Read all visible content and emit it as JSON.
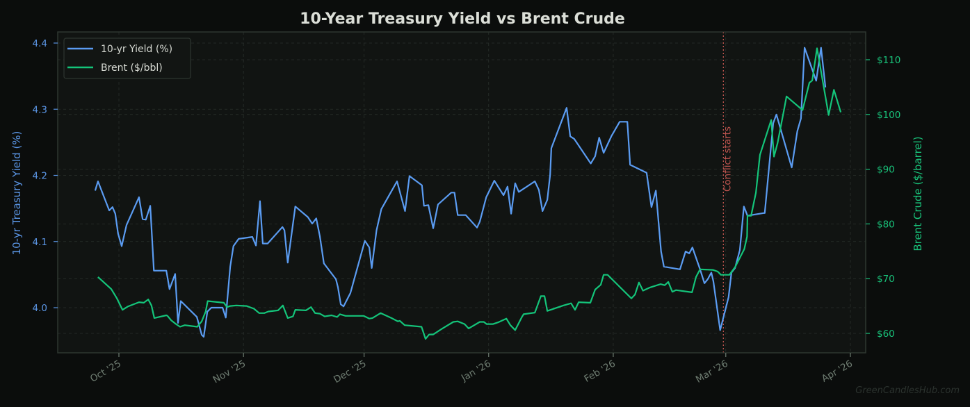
{
  "chart_data": {
    "type": "line",
    "title": "10-Year Treasury Yield vs Brent Crude",
    "xlabel": "",
    "ylabel_left": "10-yr Treasury Yield (%)",
    "ylabel_right": "Brent Crude ($/barrel)",
    "x_unit": "days since Oct 1 '25",
    "x_ticks": [
      {
        "label": "Oct '25",
        "day": 0
      },
      {
        "label": "Nov '25",
        "day": 31
      },
      {
        "label": "Dec '25",
        "day": 61
      },
      {
        "label": "Jan '26",
        "day": 92
      },
      {
        "label": "Feb '26",
        "day": 123
      },
      {
        "label": "Mar '26",
        "day": 151
      },
      {
        "label": "Apr '26",
        "day": 182
      }
    ],
    "ylim_left": [
      3.93,
      4.415
    ],
    "ylim_right": [
      56.5,
      115.2
    ],
    "xlim": [
      -15,
      186
    ],
    "y_ticks_left": [
      4.0,
      4.1,
      4.2,
      4.3,
      4.4
    ],
    "y_tick_labels_left": [
      "4.0",
      "4.1",
      "4.2",
      "4.3",
      "4.4"
    ],
    "y_ticks_right": [
      60,
      70,
      80,
      90,
      100,
      110
    ],
    "y_tick_labels_right": [
      "$60",
      "$70",
      "$80",
      "$90",
      "$100",
      "$110"
    ],
    "grid": true,
    "legend_position": "upper left",
    "annotation": {
      "label": "Conflict starts",
      "day": 150.4,
      "color": "#c0554f"
    },
    "series": [
      {
        "name": "10-yr Yield (%)",
        "axis": "left",
        "color": "#5b9cf2",
        "points": [
          [
            -5.9,
            4.177
          ],
          [
            -5.2,
            4.191
          ],
          [
            -2.4,
            4.147
          ],
          [
            -1.6,
            4.152
          ],
          [
            -0.9,
            4.142
          ],
          [
            -0.2,
            4.112
          ],
          [
            0.7,
            4.093
          ],
          [
            1.9,
            4.125
          ],
          [
            5.0,
            4.167
          ],
          [
            5.9,
            4.134
          ],
          [
            6.7,
            4.133
          ],
          [
            7.8,
            4.154
          ],
          [
            8.7,
            4.056
          ],
          [
            11.8,
            4.056
          ],
          [
            12.6,
            4.028
          ],
          [
            14.0,
            4.051
          ],
          [
            14.7,
            3.977
          ],
          [
            15.4,
            4.01
          ],
          [
            19.4,
            3.986
          ],
          [
            20.6,
            3.959
          ],
          [
            21.1,
            3.956
          ],
          [
            22.0,
            3.994
          ],
          [
            23.0,
            4.0
          ],
          [
            25.8,
            4.0
          ],
          [
            26.6,
            3.985
          ],
          [
            27.7,
            4.062
          ],
          [
            28.5,
            4.093
          ],
          [
            29.8,
            4.104
          ],
          [
            33.2,
            4.107
          ],
          [
            34.1,
            4.094
          ],
          [
            35.1,
            4.161
          ],
          [
            35.8,
            4.097
          ],
          [
            37.0,
            4.097
          ],
          [
            40.7,
            4.122
          ],
          [
            41.2,
            4.117
          ],
          [
            42.0,
            4.068
          ],
          [
            43.9,
            4.153
          ],
          [
            47.0,
            4.137
          ],
          [
            48.1,
            4.127
          ],
          [
            49.1,
            4.135
          ],
          [
            50.0,
            4.108
          ],
          [
            51.0,
            4.067
          ],
          [
            53.999,
            4.043
          ],
          [
            54.5,
            4.031
          ],
          [
            55.2,
            4.005
          ],
          [
            55.9,
            4.002
          ],
          [
            57.6,
            4.022
          ],
          [
            61.2,
            4.101
          ],
          [
            62.3,
            4.091
          ],
          [
            62.9,
            4.06
          ],
          [
            64.1,
            4.117
          ],
          [
            65.3,
            4.149
          ],
          [
            69.2,
            4.191
          ],
          [
            71.2,
            4.146
          ],
          [
            72.3,
            4.199
          ],
          [
            75.4,
            4.185
          ],
          [
            75.9,
            4.154
          ],
          [
            77.0,
            4.155
          ],
          [
            78.2,
            4.12
          ],
          [
            79.4,
            4.156
          ],
          [
            82.7,
            4.174
          ],
          [
            83.5,
            4.174
          ],
          [
            84.3,
            4.14
          ],
          [
            86.3,
            4.14
          ],
          [
            89.1,
            4.121
          ],
          [
            89.8,
            4.13
          ],
          [
            91.4,
            4.167
          ],
          [
            93.4,
            4.192
          ],
          [
            95.7,
            4.17
          ],
          [
            96.7,
            4.183
          ],
          [
            97.6,
            4.142
          ],
          [
            98.6,
            4.188
          ],
          [
            99.5,
            4.175
          ],
          [
            103.5,
            4.191
          ],
          [
            104.5,
            4.178
          ],
          [
            105.4,
            4.146
          ],
          [
            106.6,
            4.163
          ],
          [
            107.3,
            4.201
          ],
          [
            107.6,
            4.241
          ],
          [
            111.4,
            4.302
          ],
          [
            112.3,
            4.259
          ],
          [
            113.3,
            4.255
          ],
          [
            117.4,
            4.218
          ],
          [
            118.5,
            4.229
          ],
          [
            119.5,
            4.257
          ],
          [
            120.6,
            4.234
          ],
          [
            122.6,
            4.26
          ],
          [
            124.6,
            4.281
          ],
          [
            126.5,
            4.281
          ],
          [
            127.2,
            4.216
          ],
          [
            131.3,
            4.204
          ],
          [
            132.5,
            4.152
          ],
          [
            133.6,
            4.177
          ],
          [
            134.9,
            4.085
          ],
          [
            135.6,
            4.062
          ],
          [
            139.6,
            4.058
          ],
          [
            141.0,
            4.085
          ],
          [
            141.9,
            4.082
          ],
          [
            142.7,
            4.091
          ],
          [
            144.6,
            4.058
          ],
          [
            145.7,
            4.037
          ],
          [
            146.5,
            4.043
          ],
          [
            147.4,
            4.053
          ],
          [
            147.9,
            4.04
          ],
          [
            149.6,
            3.966
          ],
          [
            151.7,
            4.016
          ],
          [
            152.4,
            4.053
          ],
          [
            153.3,
            4.06
          ],
          [
            154.5,
            4.087
          ],
          [
            155.5,
            4.153
          ],
          [
            156.4,
            4.139
          ],
          [
            160.4,
            4.143
          ],
          [
            160.7,
            4.143
          ],
          [
            162.8,
            4.279
          ],
          [
            163.6,
            4.292
          ],
          [
            167.4,
            4.212
          ],
          [
            168.8,
            4.267
          ],
          [
            169.7,
            4.286
          ],
          [
            170.6,
            4.393
          ],
          [
            173.5,
            4.343
          ],
          [
            174.7,
            4.393
          ],
          [
            175.8,
            4.333
          ]
        ]
      },
      {
        "name": "Brent ($/bbl)",
        "axis": "right",
        "color": "#14c47a",
        "points": [
          [
            -5.2,
            70.3
          ],
          [
            -1.9,
            68.1
          ],
          [
            -0.5,
            66.4
          ],
          [
            0.9,
            64.3
          ],
          [
            2.2,
            64.9
          ],
          [
            5.0,
            65.7
          ],
          [
            6.2,
            65.6
          ],
          [
            7.3,
            66.2
          ],
          [
            8.1,
            65.1
          ],
          [
            8.8,
            62.8
          ],
          [
            11.8,
            63.3
          ],
          [
            12.1,
            63.2
          ],
          [
            13.0,
            62.4
          ],
          [
            14.2,
            61.7
          ],
          [
            15.2,
            61.2
          ],
          [
            16.4,
            61.5
          ],
          [
            19.5,
            61.2
          ],
          [
            20.6,
            62.2
          ],
          [
            21.6,
            64.0
          ],
          [
            22.1,
            65.9
          ],
          [
            26.1,
            65.6
          ],
          [
            26.9,
            64.8
          ],
          [
            27.7,
            65.0
          ],
          [
            29.2,
            65.1
          ],
          [
            31.8,
            65.0
          ],
          [
            33.6,
            64.5
          ],
          [
            34.9,
            63.7
          ],
          [
            36.2,
            63.7
          ],
          [
            37.2,
            64.0
          ],
          [
            39.6,
            64.2
          ],
          [
            40.8,
            65.1
          ],
          [
            42.0,
            62.8
          ],
          [
            43.3,
            63.1
          ],
          [
            43.9,
            64.3
          ],
          [
            46.5,
            64.2
          ],
          [
            47.8,
            64.8
          ],
          [
            48.8,
            63.7
          ],
          [
            50.0,
            63.6
          ],
          [
            51.2,
            63.1
          ],
          [
            52.9,
            63.3
          ],
          [
            54.3,
            63.0
          ],
          [
            55.0,
            63.5
          ],
          [
            56.4,
            63.2
          ],
          [
            60.9,
            63.2
          ],
          [
            62.3,
            62.7
          ],
          [
            63.1,
            62.8
          ],
          [
            65.1,
            63.7
          ],
          [
            67.8,
            62.8
          ],
          [
            69.4,
            62.2
          ],
          [
            69.9,
            62.3
          ],
          [
            71.1,
            61.5
          ],
          [
            75.3,
            61.2
          ],
          [
            76.3,
            59.0
          ],
          [
            77.2,
            59.8
          ],
          [
            78.2,
            59.8
          ],
          [
            80.5,
            60.9
          ],
          [
            83.2,
            62.1
          ],
          [
            84.3,
            62.2
          ],
          [
            86.0,
            61.7
          ],
          [
            87.0,
            60.9
          ],
          [
            89.8,
            62.1
          ],
          [
            90.8,
            62.1
          ],
          [
            91.5,
            61.7
          ],
          [
            93.1,
            61.7
          ],
          [
            94.3,
            62.0
          ],
          [
            96.4,
            62.7
          ],
          [
            97.4,
            61.5
          ],
          [
            98.6,
            60.6
          ],
          [
            100.2,
            62.9
          ],
          [
            100.7,
            63.5
          ],
          [
            103.5,
            63.8
          ],
          [
            105.0,
            66.8
          ],
          [
            105.9,
            66.8
          ],
          [
            106.6,
            64.1
          ],
          [
            110.6,
            65.1
          ],
          [
            112.5,
            65.5
          ],
          [
            113.5,
            64.3
          ],
          [
            114.4,
            65.7
          ],
          [
            117.3,
            65.6
          ],
          [
            118.5,
            68.0
          ],
          [
            119.9,
            68.9
          ],
          [
            120.6,
            70.7
          ],
          [
            121.6,
            70.7
          ],
          [
            127.5,
            66.4
          ],
          [
            128.4,
            67.1
          ],
          [
            129.4,
            69.3
          ],
          [
            130.4,
            67.8
          ],
          [
            132.2,
            68.4
          ],
          [
            134.8,
            69.0
          ],
          [
            135.8,
            68.8
          ],
          [
            136.7,
            69.4
          ],
          [
            137.7,
            67.6
          ],
          [
            138.6,
            67.9
          ],
          [
            142.6,
            67.5
          ],
          [
            143.6,
            70.3
          ],
          [
            144.6,
            71.7
          ],
          [
            147.8,
            71.6
          ],
          [
            149.0,
            71.3
          ],
          [
            149.8,
            70.7
          ],
          [
            151.9,
            70.7
          ],
          [
            153.3,
            72.1
          ],
          [
            155.6,
            75.4
          ],
          [
            156.3,
            77.7
          ],
          [
            156.4,
            81.5
          ],
          [
            157.3,
            81.5
          ],
          [
            158.5,
            85.7
          ],
          [
            159.5,
            92.6
          ],
          [
            162.3,
            99.0
          ],
          [
            163.0,
            92.3
          ],
          [
            163.9,
            94.8
          ],
          [
            165.6,
            101.3
          ],
          [
            166.1,
            103.3
          ],
          [
            170.1,
            100.8
          ],
          [
            171.8,
            105.8
          ],
          [
            172.5,
            106.2
          ],
          [
            173.7,
            112.1
          ],
          [
            176.6,
            99.9
          ],
          [
            177.9,
            104.5
          ],
          [
            179.6,
            100.4
          ]
        ]
      }
    ]
  },
  "legend": {
    "items": [
      {
        "label": "10-yr Yield (%)",
        "color": "#5b9cf2"
      },
      {
        "label": "Brent ($/bbl)",
        "color": "#14c47a"
      }
    ]
  },
  "watermark": "GreenCandlesHub.com",
  "colors": {
    "background": "#0b0d0c",
    "plot_background": "#111412",
    "frame": "#2e3630",
    "grid": "#2a302c",
    "left_axis": "#5b96e6",
    "right_axis": "#19c27a",
    "x_axis": "#6f7d72",
    "annotation": "#c0554f"
  }
}
